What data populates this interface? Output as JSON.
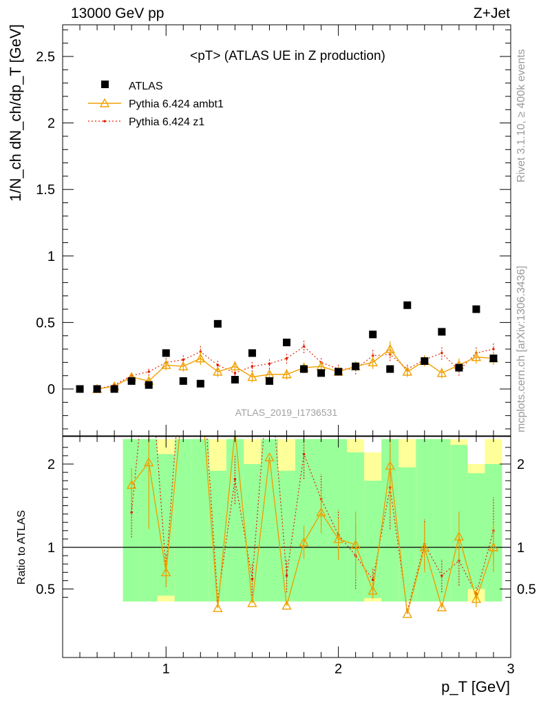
{
  "header": {
    "left": "13000 GeV pp",
    "right": "Z+Jet"
  },
  "side_labels": {
    "top": "Rivet 3.1.10, ≥ 400k events",
    "bottom": "mcplots.cern.ch [arXiv:1306.3436]"
  },
  "watermark": "ATLAS_2019_I1736531",
  "chart_data": [
    {
      "type": "scatter",
      "title": "<pT> (ATLAS UE in Z production)",
      "ylabel": "1/N_ch dN_ch/dp_T [GeV]",
      "xlim": [
        0.4,
        3.0
      ],
      "ylim": [
        -0.32,
        2.75
      ],
      "y_ticks": [
        "0",
        "0.5",
        "1",
        "1.5",
        "2",
        "2.5"
      ],
      "legend_position": "top-left",
      "series": [
        {
          "name": "ATLAS",
          "marker": "square",
          "color": "#000000",
          "x": [
            0.5,
            0.6,
            0.7,
            0.8,
            0.9,
            1.0,
            1.1,
            1.2,
            1.3,
            1.4,
            1.5,
            1.6,
            1.7,
            1.8,
            1.9,
            2.0,
            2.1,
            2.2,
            2.3,
            2.4,
            2.5,
            2.6,
            2.7,
            2.8,
            2.9
          ],
          "y": [
            0.0,
            0.0,
            0.0,
            0.06,
            0.03,
            0.27,
            0.06,
            0.04,
            0.49,
            0.07,
            0.27,
            0.06,
            0.35,
            0.15,
            0.12,
            0.13,
            0.17,
            0.41,
            0.15,
            0.63,
            0.21,
            0.43,
            0.16,
            0.6,
            0.23
          ]
        },
        {
          "name": "Pythia 6.424 ambt1",
          "marker": "open-triangle",
          "line": "solid",
          "color": "#f0a000",
          "x": [
            0.6,
            0.7,
            0.8,
            0.9,
            1.0,
            1.1,
            1.2,
            1.3,
            1.4,
            1.5,
            1.6,
            1.7,
            1.8,
            1.9,
            2.0,
            2.1,
            2.2,
            2.3,
            2.4,
            2.5,
            2.6,
            2.7,
            2.8,
            2.9
          ],
          "y": [
            0.0,
            0.02,
            0.09,
            0.06,
            0.18,
            0.17,
            0.23,
            0.13,
            0.17,
            0.09,
            0.11,
            0.11,
            0.16,
            0.17,
            0.13,
            0.17,
            0.2,
            0.3,
            0.13,
            0.21,
            0.12,
            0.18,
            0.24,
            0.23
          ],
          "err": [
            0.0,
            0.01,
            0.03,
            0.03,
            0.04,
            0.04,
            0.05,
            0.04,
            0.04,
            0.04,
            0.04,
            0.04,
            0.04,
            0.04,
            0.03,
            0.04,
            0.05,
            0.06,
            0.04,
            0.04,
            0.04,
            0.05,
            0.05,
            0.05
          ]
        },
        {
          "name": "Pythia 6.424 z1",
          "marker": "dot",
          "line": "dotted",
          "color": "#e02000",
          "x": [
            0.6,
            0.7,
            0.8,
            0.9,
            1.0,
            1.1,
            1.2,
            1.3,
            1.4,
            1.5,
            1.6,
            1.7,
            1.8,
            1.9,
            2.0,
            2.1,
            2.2,
            2.3,
            2.4,
            2.5,
            2.6,
            2.7,
            2.8,
            2.9
          ],
          "y": [
            0.0,
            0.03,
            0.1,
            0.13,
            0.2,
            0.22,
            0.28,
            0.18,
            0.12,
            0.17,
            0.19,
            0.23,
            0.32,
            0.2,
            0.15,
            0.15,
            0.25,
            0.26,
            0.15,
            0.22,
            0.27,
            0.14,
            0.27,
            0.3
          ],
          "err": [
            0.0,
            0.01,
            0.03,
            0.03,
            0.04,
            0.04,
            0.05,
            0.04,
            0.04,
            0.04,
            0.04,
            0.04,
            0.05,
            0.04,
            0.04,
            0.04,
            0.05,
            0.05,
            0.04,
            0.04,
            0.05,
            0.04,
            0.05,
            0.05
          ]
        }
      ]
    },
    {
      "type": "line",
      "ylabel": "Ratio to ATLAS",
      "xlabel": "p_T [GeV]",
      "xlim": [
        0.4,
        3.0
      ],
      "ylim": [
        0.35,
        2.3
      ],
      "y_ticks": [
        "0.5",
        "1",
        "2"
      ],
      "x_ticks": [
        "1",
        "2",
        "3"
      ],
      "reference_line": 1,
      "uncertainty_bands": [
        {
          "x0": 0.75,
          "x1": 0.85,
          "yellow": [
            0.35,
            2.3
          ],
          "green": [
            0.35,
            2.3
          ]
        },
        {
          "x0": 0.85,
          "x1": 0.95,
          "yellow": [
            0.35,
            2.3
          ],
          "green": [
            0.35,
            2.3
          ]
        },
        {
          "x0": 0.95,
          "x1": 1.05,
          "yellow": [
            0.35,
            2.3
          ],
          "green": [
            0.42,
            2.12
          ]
        },
        {
          "x0": 1.05,
          "x1": 1.15,
          "yellow": [
            0.35,
            2.3
          ],
          "green": [
            0.35,
            2.3
          ]
        },
        {
          "x0": 1.15,
          "x1": 1.25,
          "yellow": [
            0.35,
            2.3
          ],
          "green": [
            0.35,
            2.3
          ]
        },
        {
          "x0": 1.25,
          "x1": 1.35,
          "yellow": [
            0.35,
            2.3
          ],
          "green": [
            0.35,
            1.92
          ]
        },
        {
          "x0": 1.35,
          "x1": 1.45,
          "yellow": [
            0.35,
            2.3
          ],
          "green": [
            0.35,
            2.3
          ]
        },
        {
          "x0": 1.45,
          "x1": 1.55,
          "yellow": [
            0.35,
            2.3
          ],
          "green": [
            0.35,
            2.0
          ]
        },
        {
          "x0": 1.55,
          "x1": 1.65,
          "yellow": [
            0.35,
            2.3
          ],
          "green": [
            0.35,
            2.3
          ]
        },
        {
          "x0": 1.65,
          "x1": 1.75,
          "yellow": [
            0.35,
            2.3
          ],
          "green": [
            0.35,
            1.92
          ]
        },
        {
          "x0": 1.75,
          "x1": 1.85,
          "yellow": [
            0.35,
            2.3
          ],
          "green": [
            0.35,
            2.3
          ]
        },
        {
          "x0": 1.85,
          "x1": 1.95,
          "yellow": [
            0.35,
            2.3
          ],
          "green": [
            0.35,
            2.3
          ]
        },
        {
          "x0": 1.95,
          "x1": 2.05,
          "yellow": [
            0.35,
            2.3
          ],
          "green": [
            0.35,
            2.3
          ]
        },
        {
          "x0": 2.05,
          "x1": 2.15,
          "yellow": [
            0.35,
            2.3
          ],
          "green": [
            0.35,
            2.14
          ]
        },
        {
          "x0": 2.15,
          "x1": 2.25,
          "yellow": [
            0.35,
            2.14
          ],
          "green": [
            0.39,
            1.8
          ]
        },
        {
          "x0": 2.25,
          "x1": 2.35,
          "yellow": [
            0.35,
            2.3
          ],
          "green": [
            0.35,
            2.3
          ]
        },
        {
          "x0": 2.35,
          "x1": 2.45,
          "yellow": [
            0.35,
            2.3
          ],
          "green": [
            0.35,
            1.96
          ]
        },
        {
          "x0": 2.45,
          "x1": 2.55,
          "yellow": [
            0.35,
            2.3
          ],
          "green": [
            0.35,
            2.3
          ]
        },
        {
          "x0": 2.55,
          "x1": 2.65,
          "yellow": [
            0.35,
            2.3
          ],
          "green": [
            0.35,
            2.3
          ]
        },
        {
          "x0": 2.65,
          "x1": 2.75,
          "yellow": [
            0.35,
            2.3
          ],
          "green": [
            0.35,
            2.23
          ]
        },
        {
          "x0": 2.75,
          "x1": 2.85,
          "yellow": [
            0.35,
            2.0
          ],
          "green": [
            0.5,
            1.89
          ]
        },
        {
          "x0": 2.85,
          "x1": 2.95,
          "yellow": [
            0.35,
            2.3
          ],
          "green": [
            0.35,
            2.0
          ]
        }
      ],
      "series": [
        {
          "name": "Pythia 6.424 ambt1",
          "x": [
            0.8,
            0.9,
            1.0,
            1.1,
            1.2,
            1.3,
            1.4,
            1.5,
            1.6,
            1.7,
            1.8,
            1.9,
            2.0,
            2.1,
            2.2,
            2.3,
            2.4,
            2.5,
            2.6,
            2.7,
            2.8,
            2.9
          ],
          "y": [
            1.75,
            2.02,
            0.7,
            2.8,
            3.0,
            0.27,
            2.4,
            0.33,
            2.08,
            0.3,
            1.06,
            1.42,
            1.1,
            1.03,
            0.48,
            1.98,
            0.2,
            1.0,
            0.28,
            1.13,
            0.38,
            1.0
          ],
          "err": [
            0.2,
            0.8,
            0.18,
            0,
            0,
            0,
            0,
            0,
            0,
            0,
            0.2,
            0.25,
            0.25,
            0.4,
            0.1,
            0.6,
            0,
            0.3,
            0,
            0.3,
            0.1,
            0.3
          ]
        },
        {
          "name": "Pythia 6.424 z1",
          "x": [
            0.8,
            0.9,
            1.0,
            1.1,
            1.2,
            1.3,
            1.4,
            1.5,
            1.6,
            1.7,
            1.8,
            1.9,
            2.0,
            2.1,
            2.2,
            2.3,
            2.4,
            2.5,
            2.6,
            2.7,
            2.8,
            2.9
          ],
          "y": [
            1.42,
            3.5,
            0.73,
            3.5,
            3.5,
            0.36,
            1.82,
            0.62,
            3.2,
            0.66,
            2.12,
            1.58,
            1.15,
            0.9,
            0.61,
            1.72,
            0.24,
            1.04,
            0.66,
            0.84,
            0.44,
            1.2
          ],
          "err": [
            0.3,
            0,
            0.2,
            0,
            0,
            0,
            0.3,
            0.2,
            0,
            0.2,
            0.3,
            0.3,
            0.3,
            0.4,
            0.15,
            0.5,
            0,
            0.3,
            0.2,
            0.3,
            0.1,
            0.4
          ]
        }
      ]
    }
  ]
}
